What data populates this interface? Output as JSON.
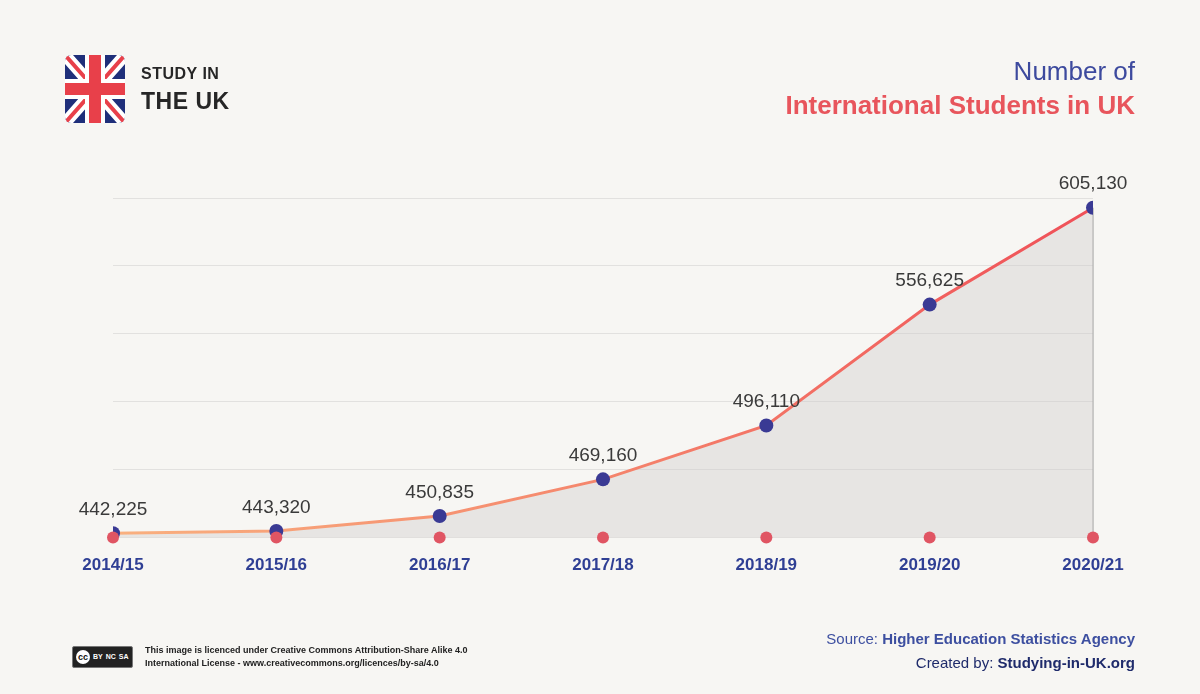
{
  "chart_data": {
    "type": "area",
    "title": [
      "Number of",
      "International Students in UK"
    ],
    "categories": [
      "2014/15",
      "2015/16",
      "2016/17",
      "2017/18",
      "2018/19",
      "2019/20",
      "2020/21"
    ],
    "values": [
      442225,
      443320,
      450835,
      469160,
      496110,
      556625,
      605130
    ],
    "value_labels": [
      "442,225",
      "443,320",
      "450,835",
      "469,160",
      "496,110",
      "556,625",
      "605,130"
    ],
    "color": "#ef5058",
    "marker": "circle",
    "ylim": [
      440000,
      610000
    ],
    "yticks": [
      440000,
      474000,
      508000,
      542000,
      576000,
      610000
    ],
    "grid": true,
    "data_labels": true,
    "tick_labels": "x"
  },
  "header": {
    "brand": [
      "STUDY IN",
      "THE UK"
    ]
  },
  "footer": {
    "license_badge": [
      "cc",
      "BY",
      "NC",
      "SA"
    ],
    "license": [
      "This image is licenced under Creative Commons Attribution-Share Alike 4.0",
      "International License - www.creativecommons.org/licences/by-sa/4.0"
    ],
    "source_label": "Source:",
    "source": "Higher Education Statistics Agency",
    "credit_label": "Created by:",
    "credit": "Studying-in-UK.org"
  }
}
